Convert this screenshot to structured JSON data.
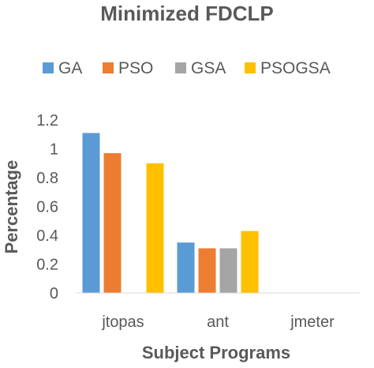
{
  "chart_data": {
    "type": "bar",
    "title": "Minimized FDCLP",
    "xlabel": "Subject Programs",
    "ylabel": "Percentage",
    "categories": [
      "jtopas",
      "ant",
      "jmeter"
    ],
    "series": [
      {
        "name": "GA",
        "values": [
          1.11,
          0.35,
          0
        ],
        "color": "#5B9BD5"
      },
      {
        "name": "PSO",
        "values": [
          0.97,
          0.31,
          0
        ],
        "color": "#ED7D31"
      },
      {
        "name": "GSA",
        "values": [
          0,
          0.31,
          0
        ],
        "color": "#A5A5A5"
      },
      {
        "name": "PSOGSA",
        "values": [
          0.9,
          0.43,
          0
        ],
        "color": "#FFC000"
      }
    ],
    "ylim": [
      0,
      1.2
    ],
    "yticks": [
      "0",
      "0.2",
      "0.4",
      "0.6",
      "0.8",
      "1",
      "1.2"
    ],
    "grid": false,
    "legend": "top"
  }
}
